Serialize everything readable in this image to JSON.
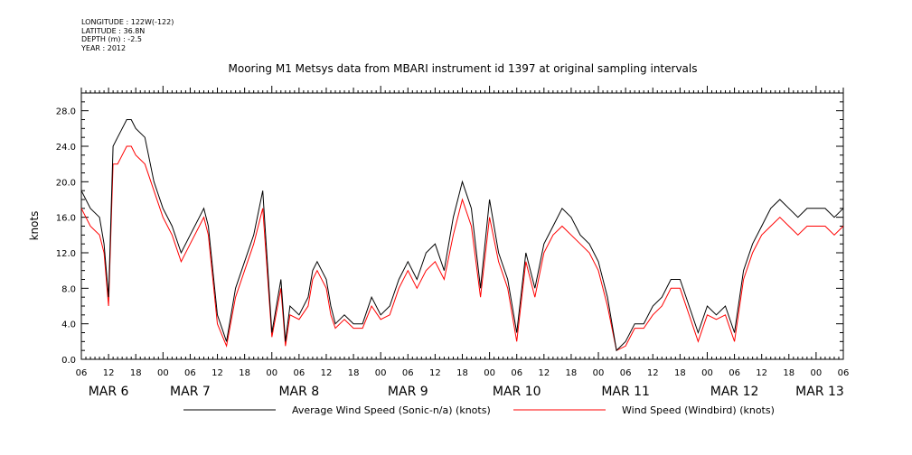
{
  "header": {
    "lines": [
      "LONGITUDE : 122W(-122)",
      "LATITUDE : 36.8N",
      "DEPTH (m) : -2.5",
      "YEAR : 2012"
    ]
  },
  "chart_data": {
    "type": "line",
    "title": "Mooring M1 Metsys data from MBARI instrument id 1397 at original sampling intervals",
    "ylabel": "knots",
    "xlabel": "",
    "ylim": [
      0,
      30
    ],
    "yticks": [
      "0.0",
      "4.0",
      "8.0",
      "12.0",
      "16.0",
      "20.0",
      "24.0",
      "28.0"
    ],
    "x_unit": "hours since 2012-03-06 06:00",
    "xlim": [
      0,
      168
    ],
    "hour_labels": [
      "06",
      "12",
      "18",
      "00",
      "06",
      "12",
      "18",
      "00",
      "06",
      "12",
      "18",
      "00",
      "06",
      "12",
      "18",
      "00",
      "06",
      "12",
      "18",
      "00",
      "06",
      "12",
      "18",
      "00",
      "06",
      "12",
      "18",
      "00",
      "06"
    ],
    "day_labels": [
      "MAR 6",
      "MAR 7",
      "MAR 8",
      "MAR 9",
      "MAR 10",
      "MAR 11",
      "MAR 12",
      "MAR 13"
    ],
    "grid": false,
    "legend_position": "bottom",
    "series": [
      {
        "name": "Average Wind Speed (Sonic-n/a) (knots)",
        "color": "#000000",
        "x": [
          0,
          2,
          4,
          5,
          6,
          7,
          8,
          9,
          10,
          11,
          12,
          14,
          16,
          18,
          20,
          22,
          24,
          26,
          27,
          28,
          30,
          32,
          34,
          36,
          38,
          40,
          42,
          44,
          45,
          46,
          48,
          50,
          51,
          52,
          54,
          55,
          56,
          58,
          60,
          62,
          64,
          66,
          68,
          70,
          72,
          74,
          76,
          78,
          80,
          82,
          84,
          86,
          88,
          90,
          92,
          94,
          96,
          98,
          100,
          102,
          104,
          106,
          108,
          110,
          112,
          114,
          116,
          118,
          120,
          122,
          124,
          126,
          128,
          130,
          132,
          134,
          136,
          138,
          140,
          142,
          144,
          146,
          148,
          150,
          152,
          154,
          156,
          158,
          160,
          162,
          164,
          166,
          168
        ],
        "y": [
          19,
          17,
          16,
          13,
          7,
          24,
          25,
          26,
          27,
          27,
          26,
          25,
          20,
          17,
          15,
          12,
          14,
          16,
          17,
          15,
          5,
          2,
          8,
          11,
          14,
          19,
          3,
          9,
          2,
          6,
          5,
          7,
          10,
          11,
          9,
          6,
          4,
          5,
          4,
          4,
          7,
          5,
          6,
          9,
          11,
          9,
          12,
          13,
          10,
          16,
          20,
          17,
          8,
          18,
          12,
          9,
          3,
          12,
          8,
          13,
          15,
          17,
          16,
          14,
          13,
          11,
          7,
          1,
          2,
          4,
          4,
          6,
          7,
          9,
          9,
          6,
          3,
          6,
          5,
          6,
          3,
          10,
          13,
          15,
          17,
          18,
          17,
          16,
          17,
          17,
          17,
          16,
          17
        ]
      },
      {
        "name": "Wind Speed (Windbird) (knots)",
        "color": "#ff0000",
        "x": [
          0,
          2,
          4,
          5,
          6,
          7,
          8,
          9,
          10,
          11,
          12,
          14,
          16,
          18,
          20,
          22,
          24,
          26,
          27,
          28,
          30,
          32,
          34,
          36,
          38,
          40,
          42,
          44,
          45,
          46,
          48,
          50,
          51,
          52,
          54,
          55,
          56,
          58,
          60,
          62,
          64,
          66,
          68,
          70,
          72,
          74,
          76,
          78,
          80,
          82,
          84,
          86,
          88,
          90,
          92,
          94,
          96,
          98,
          100,
          102,
          104,
          106,
          108,
          110,
          112,
          114,
          116,
          118,
          120,
          122,
          124,
          126,
          128,
          130,
          132,
          134,
          136,
          138,
          140,
          142,
          144,
          146,
          148,
          150,
          152,
          154,
          156,
          158,
          160,
          162,
          164,
          166,
          168
        ],
        "y": [
          17,
          15,
          14,
          12,
          6,
          22,
          22,
          23,
          24,
          24,
          23,
          22,
          19,
          16,
          14,
          11,
          13,
          15,
          16,
          14,
          4,
          1.5,
          7,
          10,
          13,
          17,
          2.5,
          8,
          1.5,
          5,
          4.5,
          6,
          9,
          10,
          8,
          5,
          3.5,
          4.5,
          3.5,
          3.5,
          6,
          4.5,
          5,
          8,
          10,
          8,
          10,
          11,
          9,
          14,
          18,
          15,
          7,
          16,
          11,
          8,
          2,
          11,
          7,
          12,
          14,
          15,
          14,
          13,
          12,
          10,
          6,
          1,
          1.5,
          3.5,
          3.5,
          5,
          6,
          8,
          8,
          5,
          2,
          5,
          4.5,
          5,
          2,
          9,
          12,
          14,
          15,
          16,
          15,
          14,
          15,
          15,
          15,
          14,
          15
        ]
      }
    ]
  }
}
